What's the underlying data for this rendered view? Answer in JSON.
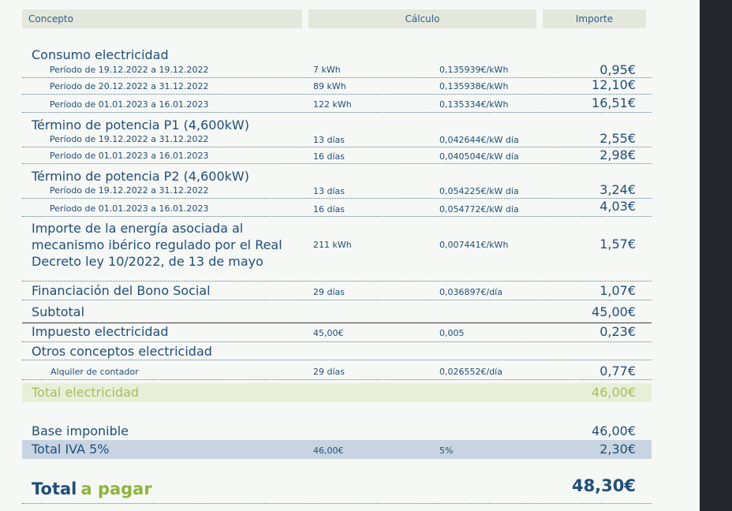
{
  "headers": {
    "concepto": "Concepto",
    "calculo": "Cálculo",
    "importe": "Importe"
  },
  "consumo": {
    "title": "Consumo electricidad",
    "rows": [
      {
        "periodo": "Período de 19.12.2022 a 19.12.2022",
        "qty": "7 kWh",
        "rate": "0,135939€/kWh",
        "amount": "0,95€"
      },
      {
        "periodo": "Período de 20.12.2022 a 31.12.2022",
        "qty": "89 kWh",
        "rate": "0,135938€/kWh",
        "amount": "12,10€"
      },
      {
        "periodo": "Período de 01.01.2023 a 16.01.2023",
        "qty": "122 kWh",
        "rate": "0,135334€/kWh",
        "amount": "16,51€"
      }
    ]
  },
  "p1": {
    "title": "Término de potencia P1 (4,600kW)",
    "rows": [
      {
        "periodo": "Período de 19.12.2022 a 31.12.2022",
        "qty": "13 días",
        "rate": "0,042644€/kW día",
        "amount": "2,55€"
      },
      {
        "periodo": "Período de 01.01.2023 a 16.01.2023",
        "qty": "16 días",
        "rate": "0,040504€/kW día",
        "amount": "2,98€"
      }
    ]
  },
  "p2": {
    "title": "Término de potencia P2 (4,600kW)",
    "rows": [
      {
        "periodo": "Período de 19.12.2022 a 31.12.2022",
        "qty": "13 días",
        "rate": "0,054225€/kW día",
        "amount": "3,24€"
      },
      {
        "periodo": "Período de 01.01.2023 a 16.01.2023",
        "qty": "16 días",
        "rate": "0,054772€/kW día",
        "amount": "4,03€"
      }
    ]
  },
  "iberico": {
    "line1": "Importe de la energía asociada al",
    "line2": "mecanismo ibérico regulado por el Real",
    "line3": "Decreto ley 10/2022, de 13 de mayo",
    "qty": "211 kWh",
    "rate": "0,007441€/kWh",
    "amount": "1,57€"
  },
  "bono": {
    "label": "Financiación del Bono Social",
    "qty": "29 días",
    "rate": "0,036897€/día",
    "amount": "1,07€"
  },
  "subtotal": {
    "label": "Subtotal",
    "amount": "45,00€"
  },
  "impuesto": {
    "label": "Impuesto electricidad",
    "qty": "45,00€",
    "rate": "0,005",
    "amount": "0,23€"
  },
  "otros": {
    "title": "Otros conceptos electricidad",
    "alquiler": {
      "label": "Alquiler de contador",
      "qty": "29 días",
      "rate": "0,026552€/día",
      "amount": "0,77€"
    }
  },
  "total_electricidad": {
    "label": "Total electricidad",
    "amount": "46,00€"
  },
  "base": {
    "label": "Base imponible",
    "amount": "46,00€"
  },
  "iva": {
    "label": "Total IVA 5%",
    "qty": "46,00€",
    "rate": "5%",
    "amount": "2,30€"
  },
  "total_pagar": {
    "word1": "Total",
    "word2": "a pagar",
    "amount": "48,30€"
  },
  "colors": {
    "primary": "#1f4e79",
    "accent_green": "#8db43e",
    "header_bg": "#e4e8dc",
    "band_green": "#e8efd9",
    "band_blue": "#c8d4e2"
  }
}
